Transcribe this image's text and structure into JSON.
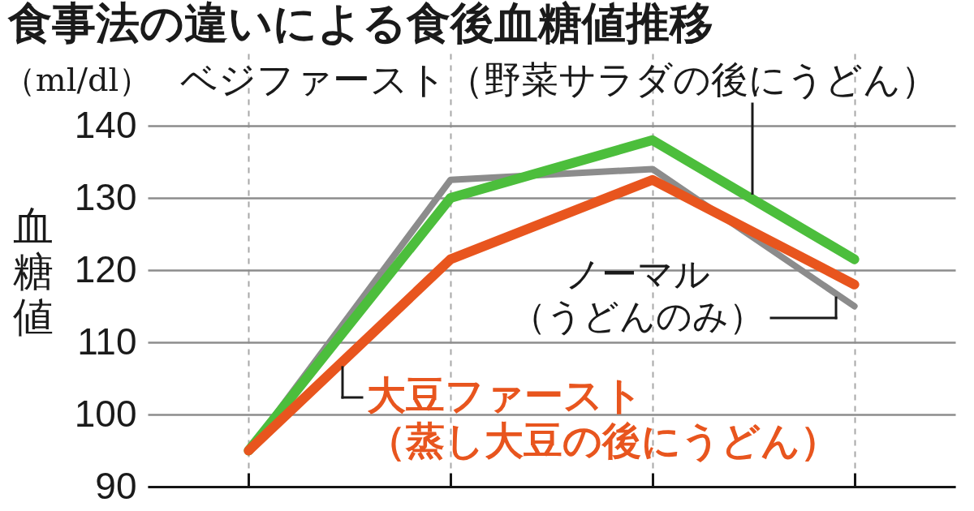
{
  "chart_data": {
    "type": "line",
    "title": "食事法の違いによる食後血糖値推移",
    "ylabel": "血糖値",
    "annotations": [
      "（ml/dl）"
    ],
    "categories": [
      null,
      null,
      null,
      null
    ],
    "ylim": [
      90,
      150
    ],
    "yticks": [
      90,
      100,
      110,
      120,
      130,
      140
    ],
    "grid": true,
    "tick_labels": "y",
    "series": [
      {
        "name": "ノーマル（うどんのみ）",
        "color": "#8c8c8c",
        "values": [
          95,
          132.5,
          134,
          115
        ]
      },
      {
        "name": "ベジファースト（野菜サラダの後にうどん）",
        "color": "#4cbe3c",
        "values": [
          95,
          130,
          138,
          121.5
        ]
      },
      {
        "name": "大豆ファースト（蒸し大豆の後にうどん）",
        "color": "#e8551e",
        "values": [
          95,
          121.5,
          132.5,
          118
        ]
      }
    ]
  }
}
